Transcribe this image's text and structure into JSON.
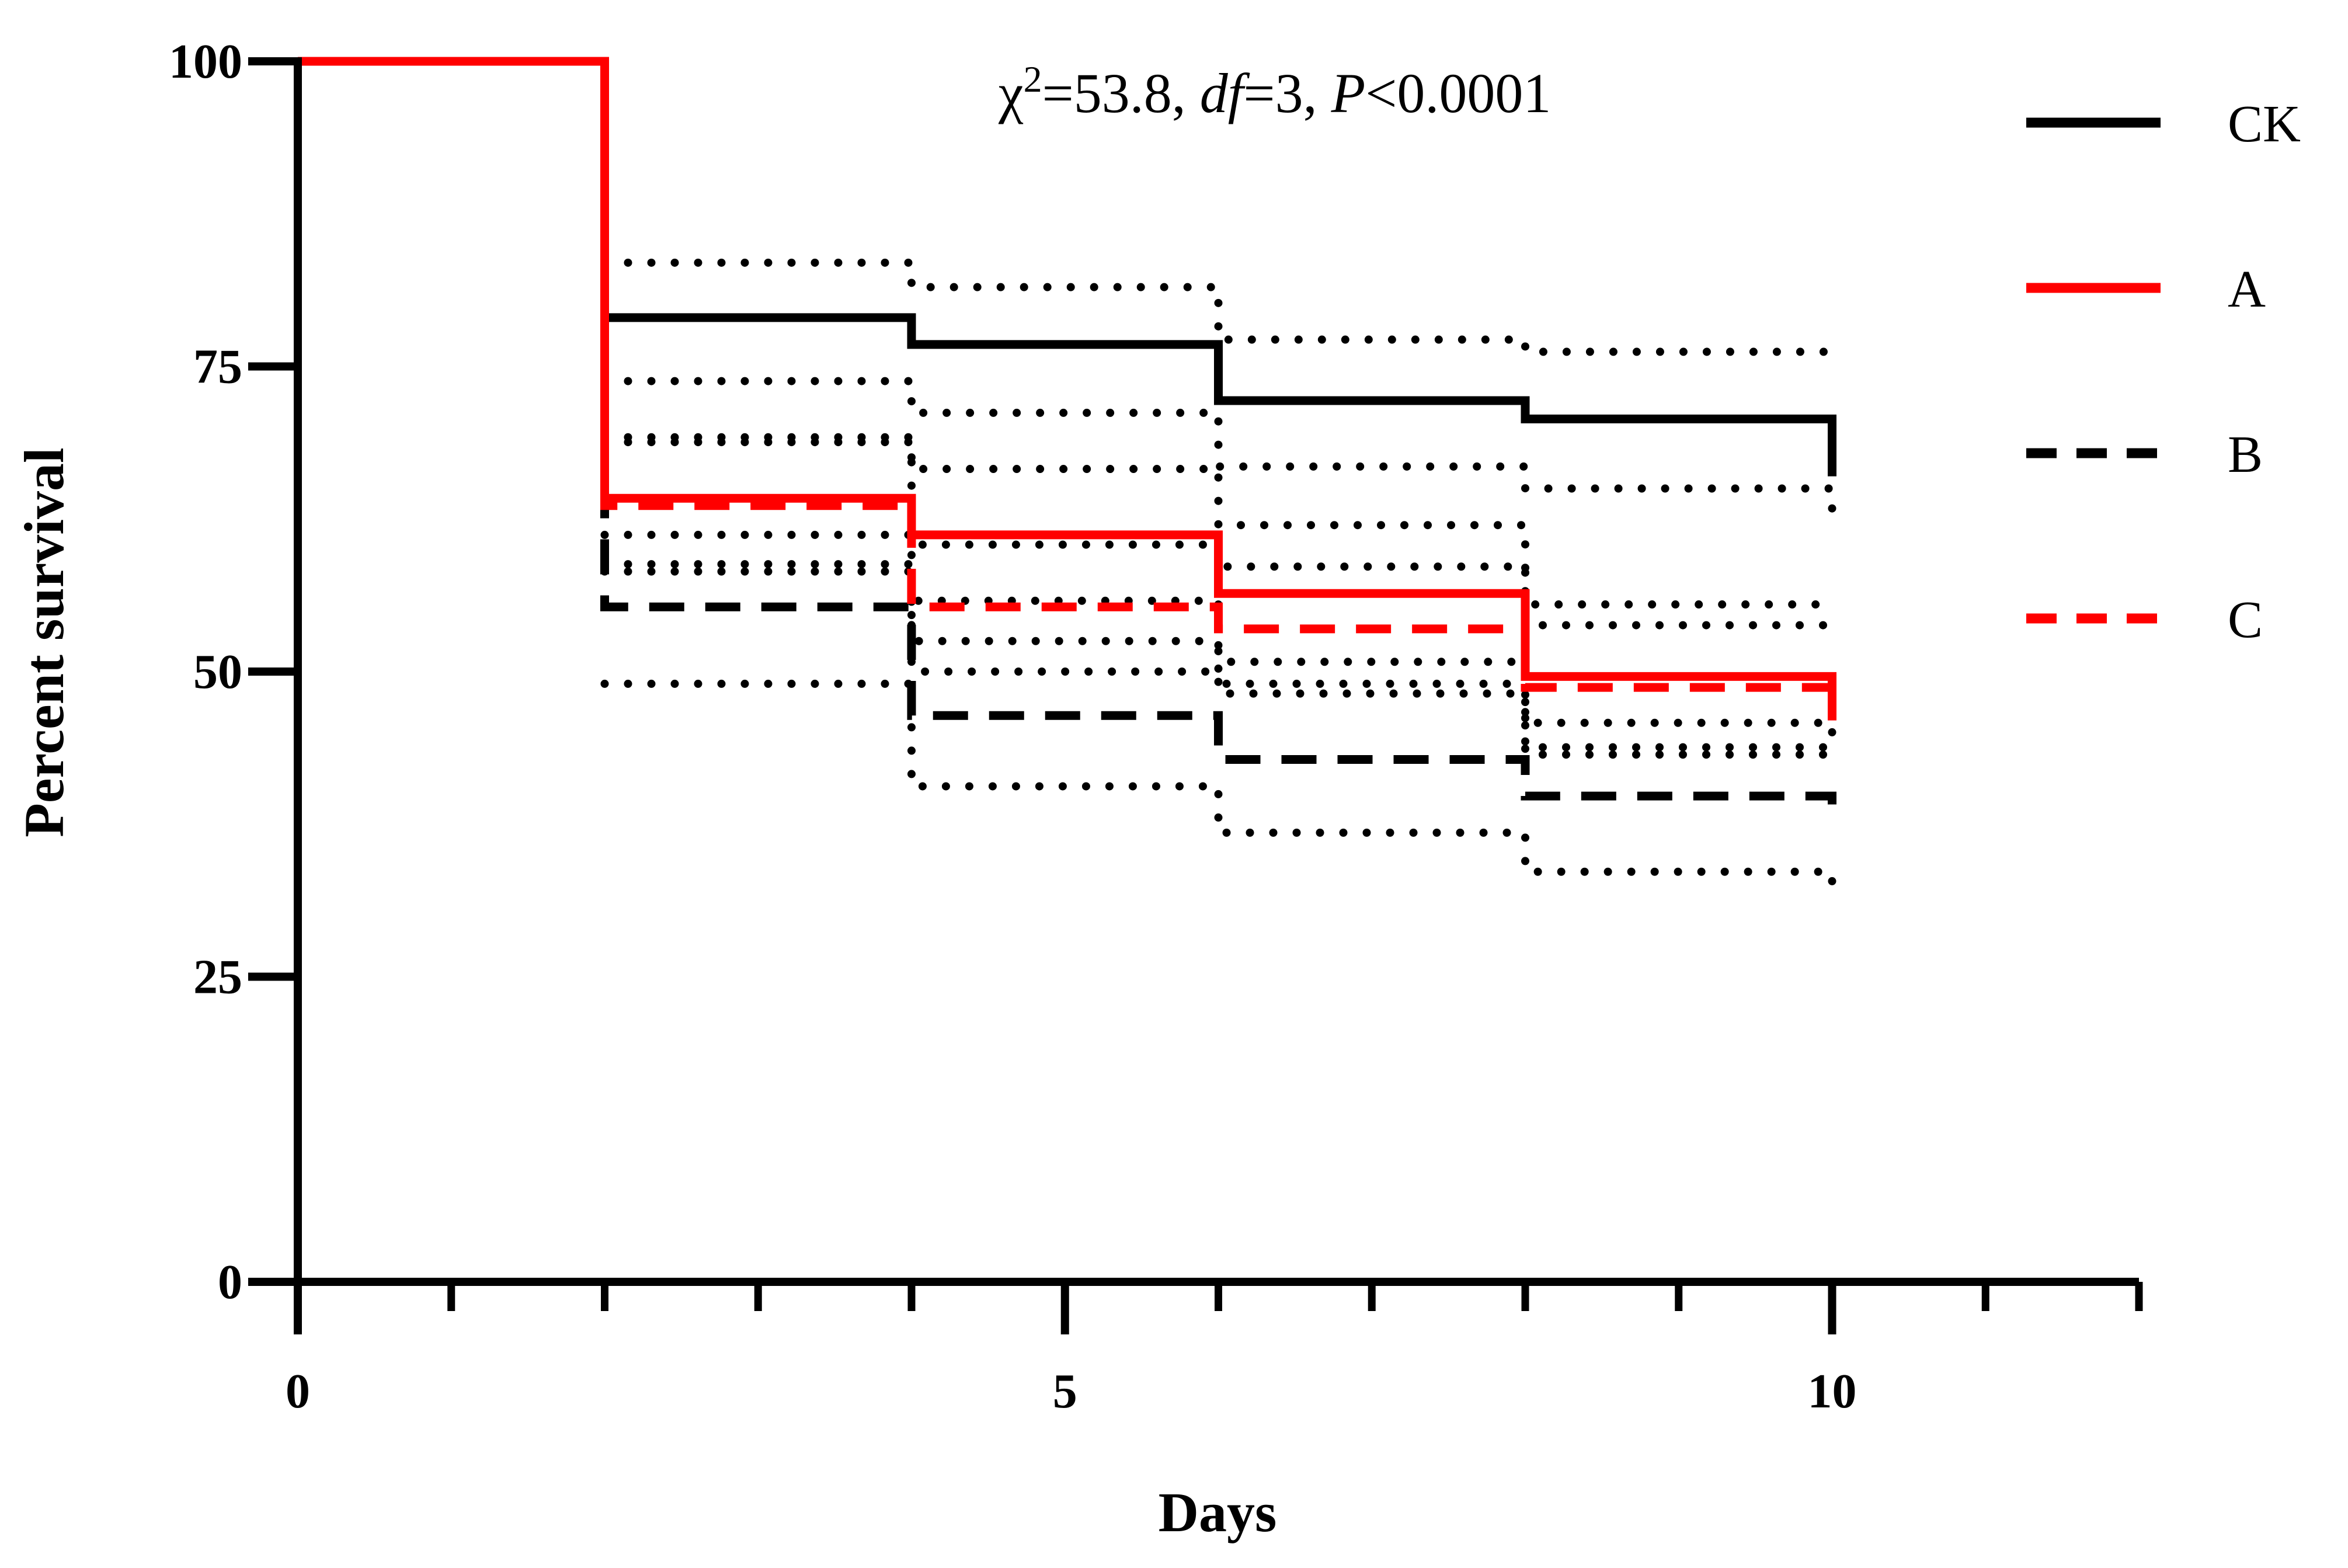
{
  "chart_data": {
    "type": "line",
    "subtype": "kaplan-meier step survival curves with confidence bands",
    "xlabel": "Days",
    "ylabel": "Percent survival",
    "xlim": [
      0,
      12
    ],
    "ylim": [
      0,
      100
    ],
    "xticks_major": [
      0,
      5,
      10
    ],
    "xtick_labels": [
      "0",
      "5",
      "10"
    ],
    "xticks_minor": [
      1,
      2,
      3,
      4,
      6,
      7,
      8,
      9,
      11,
      12
    ],
    "yticks": [
      0,
      25,
      50,
      75,
      100
    ],
    "ytick_labels": [
      "0",
      "25",
      "50",
      "75",
      "100"
    ],
    "grid": false,
    "legend_position": "top-right",
    "annotation": {
      "chi": "χ",
      "sup": "2",
      "chi_value": "=53.8, ",
      "df_label": "df",
      "df_value": "=3, ",
      "p_label": "P",
      "p_value": "<0.0001"
    },
    "x": [
      0,
      2,
      4,
      6,
      8,
      10
    ],
    "series": [
      {
        "name": "CK",
        "color": "#000000",
        "dash": "solid",
        "values": [
          100,
          79,
          76.8,
          72.2,
          70.7,
          66
        ],
        "ci_upper": [
          null,
          83.5,
          81.5,
          77.2,
          76.2,
          75.5
        ],
        "ci_lower": [
          null,
          73.8,
          71.2,
          66.8,
          65,
          62
        ]
      },
      {
        "name": "A",
        "color": "#ff0000",
        "dash": "solid",
        "values": [
          100,
          64.2,
          61.2,
          56.4,
          49.6,
          46
        ],
        "ci_upper": [
          null,
          69.2,
          66.6,
          62,
          55.5,
          55.5
        ],
        "ci_lower": [
          null,
          58.8,
          55.8,
          50.8,
          43.8,
          42.8
        ]
      },
      {
        "name": "B",
        "color": "#000000",
        "dash": "dashed",
        "values": [
          100,
          55.3,
          46.4,
          42.8,
          39.8,
          37.5
        ],
        "ci_upper": [
          null,
          61.2,
          52.5,
          49,
          45.8,
          44
        ],
        "ci_lower": [
          null,
          49,
          40.6,
          36.8,
          33.6,
          31.5
        ]
      },
      {
        "name": "C",
        "color": "#ff0000",
        "dash": "dashed",
        "values": [
          100,
          63.6,
          55.3,
          53.5,
          48.7,
          48
        ],
        "ci_upper": [
          null,
          68.8,
          60.4,
          58.6,
          53.8,
          53.8
        ],
        "ci_lower": [
          null,
          58.2,
          50,
          48.2,
          43.2,
          43
        ]
      }
    ]
  }
}
